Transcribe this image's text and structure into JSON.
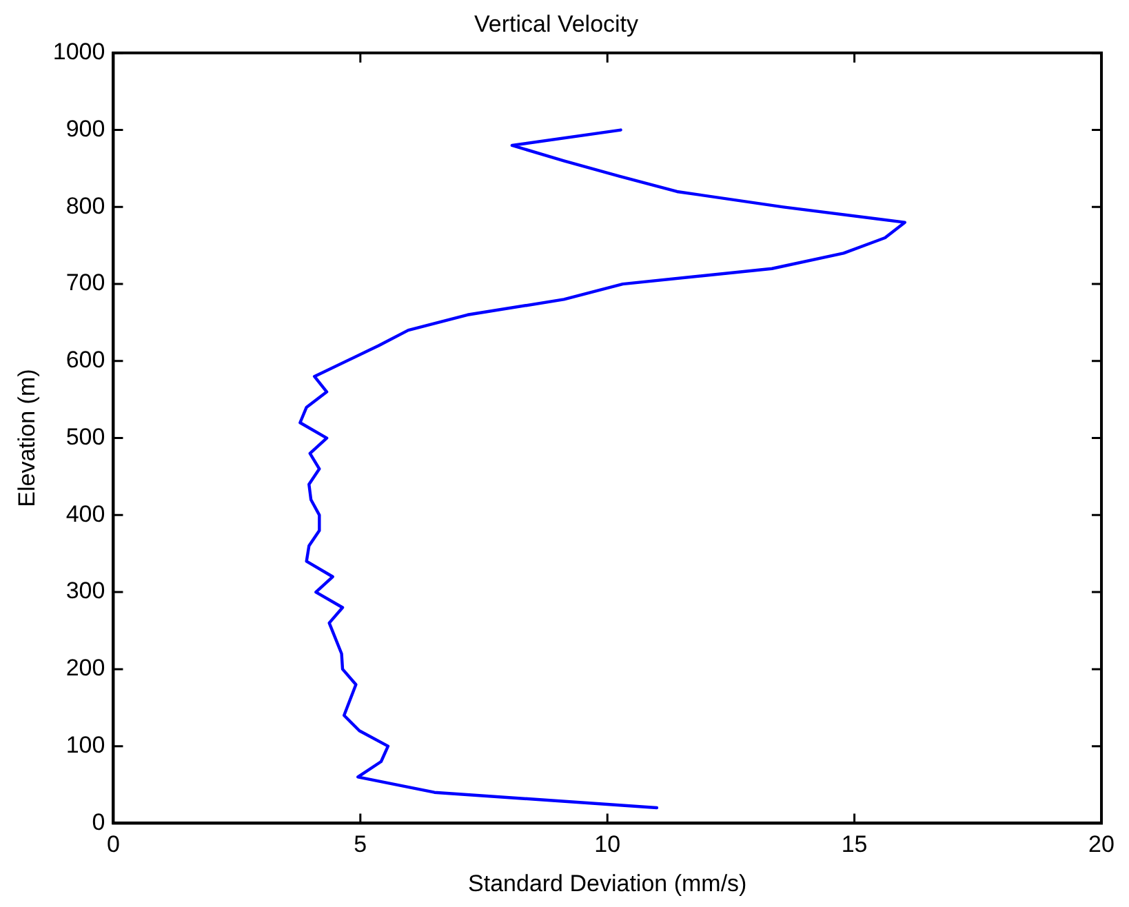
{
  "chart_data": {
    "type": "line",
    "title": "Vertical Velocity",
    "xlabel": "Standard Deviation (mm/s)",
    "ylabel": "Elevation (m)",
    "series": [
      {
        "color": "#0000ff",
        "x": [
          11.0,
          6.5,
          4.95,
          5.42,
          5.56,
          4.98,
          4.67,
          4.91,
          4.64,
          4.62,
          4.37,
          4.64,
          4.1,
          4.44,
          3.91,
          3.96,
          4.17,
          4.17,
          4.0,
          3.96,
          4.17,
          3.98,
          4.32,
          3.78,
          3.91,
          4.32,
          4.07,
          5.37,
          5.97,
          7.17,
          9.12,
          10.31,
          13.33,
          14.78,
          15.62,
          16.02,
          13.56,
          11.41,
          10.24,
          9.12,
          8.07,
          10.27
        ],
        "values": [
          20,
          40,
          60,
          80,
          100,
          120,
          140,
          180,
          200,
          220,
          260,
          280,
          300,
          320,
          340,
          360,
          380,
          400,
          420,
          440,
          460,
          480,
          500,
          520,
          540,
          560,
          580,
          620,
          640,
          660,
          680,
          700,
          720,
          740,
          760,
          780,
          800,
          820,
          840,
          860,
          880,
          900
        ]
      }
    ],
    "xlim": [
      0,
      20
    ],
    "xticks": [
      0,
      5,
      10,
      15,
      20
    ],
    "ylim": [
      0,
      1000
    ],
    "yticks": [
      0,
      100,
      200,
      300,
      400,
      500,
      600,
      700,
      800,
      900,
      1000
    ],
    "grid": false,
    "legend": false,
    "marker": "none",
    "line_style": "solid"
  }
}
